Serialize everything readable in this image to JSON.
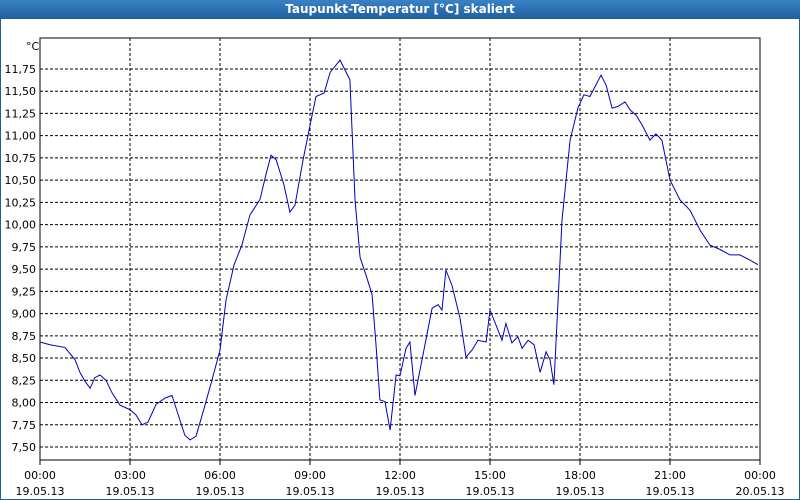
{
  "chart_data": {
    "type": "line",
    "title": "Taupunkt-Temperatur [°C] skaliert",
    "y_unit": "°C",
    "xlim": [
      0,
      24
    ],
    "ylim": [
      7.354,
      12.098
    ],
    "grid": true,
    "xticks": [
      {
        "value": 0,
        "label": "00:00",
        "date": "19.05.13"
      },
      {
        "value": 3,
        "label": "03:00",
        "date": "19.05.13"
      },
      {
        "value": 6,
        "label": "06:00",
        "date": "19.05.13"
      },
      {
        "value": 9,
        "label": "09:00",
        "date": "19.05.13"
      },
      {
        "value": 12,
        "label": "12:00",
        "date": "19.05.13"
      },
      {
        "value": 15,
        "label": "15:00",
        "date": "19.05.13"
      },
      {
        "value": 18,
        "label": "18:00",
        "date": "19.05.13"
      },
      {
        "value": 21,
        "label": "21:00",
        "date": "19.05.13"
      },
      {
        "value": 24,
        "label": "00:00",
        "date": "20.05.13"
      }
    ],
    "yticks": [
      {
        "value": 7.5,
        "label": "7,50"
      },
      {
        "value": 7.75,
        "label": "7,75"
      },
      {
        "value": 8,
        "label": "8,00"
      },
      {
        "value": 8.25,
        "label": "8,25"
      },
      {
        "value": 8.5,
        "label": "8,50"
      },
      {
        "value": 8.75,
        "label": "8,75"
      },
      {
        "value": 9,
        "label": "9,00"
      },
      {
        "value": 9.25,
        "label": "9,25"
      },
      {
        "value": 9.5,
        "label": "9,50"
      },
      {
        "value": 9.75,
        "label": "9,75"
      },
      {
        "value": 10,
        "label": "10,00"
      },
      {
        "value": 10.25,
        "label": "10,25"
      },
      {
        "value": 10.5,
        "label": "10,50"
      },
      {
        "value": 10.75,
        "label": "10,75"
      },
      {
        "value": 11,
        "label": "11,00"
      },
      {
        "value": 11.25,
        "label": "11,25"
      },
      {
        "value": 11.5,
        "label": "11,50"
      },
      {
        "value": 11.75,
        "label": "11,75"
      }
    ],
    "x": [
      0,
      0.33,
      0.83,
      1.17,
      1.33,
      1.5,
      1.67,
      1.83,
      2,
      2.2,
      2.4,
      2.67,
      3,
      3.2,
      3.4,
      3.6,
      3.87,
      4.17,
      4.4,
      4.6,
      4.83,
      5,
      5.2,
      5.5,
      5.73,
      6,
      6.2,
      6.47,
      6.73,
      7,
      7.33,
      7.53,
      7.7,
      7.87,
      8.13,
      8.33,
      8.5,
      8.77,
      9.07,
      9.2,
      9.47,
      9.67,
      10,
      10.33,
      10.5,
      10.67,
      10.87,
      11.07,
      11.2,
      11.33,
      11.5,
      11.67,
      11.87,
      12,
      12.2,
      12.33,
      12.5,
      12.67,
      12.93,
      13.07,
      13.27,
      13.4,
      13.53,
      13.73,
      14,
      14.2,
      14.4,
      14.6,
      14.87,
      15,
      15.2,
      15.4,
      15.53,
      15.73,
      15.93,
      16.07,
      16.27,
      16.47,
      16.67,
      16.87,
      17,
      17.13,
      17.27,
      17.4,
      17.67,
      17.93,
      18.13,
      18.33,
      18.53,
      18.7,
      18.87,
      19.07,
      19.27,
      19.5,
      19.67,
      19.87,
      20.07,
      20.33,
      20.53,
      20.73,
      21,
      21.33,
      21.67,
      22,
      22.33,
      22.67,
      23,
      23.33,
      23.67,
      23.93
    ],
    "series": [
      {
        "color": "#0000c0",
        "values": [
          8.68,
          8.65,
          8.62,
          8.48,
          8.34,
          8.24,
          8.16,
          8.28,
          8.31,
          8.25,
          8.11,
          7.97,
          7.92,
          7.86,
          7.75,
          7.78,
          7.98,
          8.05,
          8.08,
          7.87,
          7.63,
          7.58,
          7.62,
          7.97,
          8.25,
          8.59,
          9.15,
          9.55,
          9.77,
          10.11,
          10.28,
          10.56,
          10.78,
          10.73,
          10.45,
          10.14,
          10.22,
          10.73,
          11.23,
          11.44,
          11.48,
          11.71,
          11.85,
          11.63,
          10.28,
          9.63,
          9.43,
          9.21,
          8.65,
          8.03,
          8.01,
          7.69,
          8.31,
          8.3,
          8.61,
          8.68,
          8.08,
          8.37,
          8.82,
          9.06,
          9.1,
          9.04,
          9.49,
          9.32,
          8.95,
          8.51,
          8.59,
          8.7,
          8.68,
          9.04,
          8.87,
          8.7,
          8.89,
          8.67,
          8.74,
          8.61,
          8.7,
          8.65,
          8.34,
          8.57,
          8.48,
          8.2,
          9.15,
          10.05,
          10.95,
          11.31,
          11.46,
          11.44,
          11.57,
          11.68,
          11.57,
          11.31,
          11.33,
          11.38,
          11.29,
          11.23,
          11.12,
          10.95,
          11.02,
          10.95,
          10.5,
          10.28,
          10.16,
          9.94,
          9.77,
          9.72,
          9.66,
          9.66,
          9.6,
          9.55
        ]
      }
    ]
  }
}
